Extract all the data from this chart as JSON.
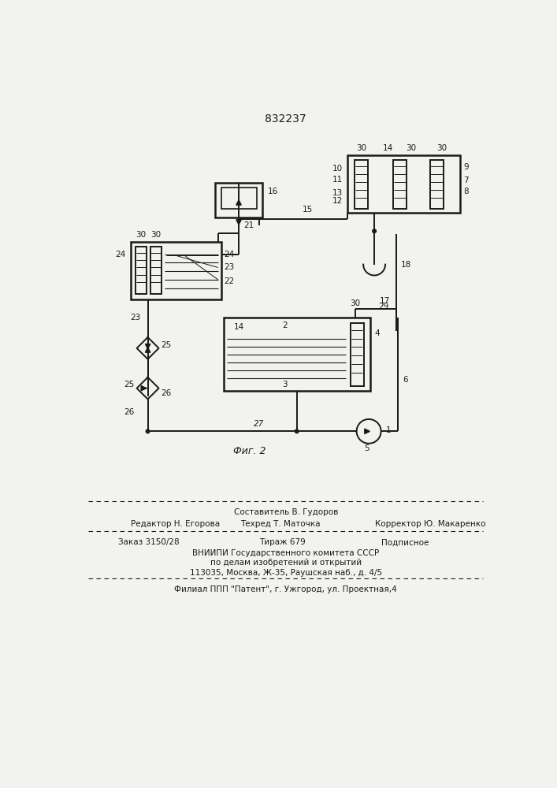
{
  "patent_number": "832237",
  "fig_label": "Фиг. 2",
  "background_color": "#f2f2ee",
  "line_color": "#1a1a1a",
  "footer_line1": "Составитель В. Гудоров",
  "footer_line2_left": "Редактор Н. Егорова",
  "footer_line2_mid": "Техред Т. Маточка",
  "footer_line2_right": "Корректор Ю. Макаренко",
  "footer_line3_left": "Заказ 3150/28",
  "footer_line3_mid": "Тираж 679",
  "footer_line3_right": "Подписное",
  "footer_line4": "ВНИИПИ Государственного комитета СССР",
  "footer_line5": "по делам изобретений и открытий",
  "footer_line6": "113035, Москва, Ж-35, Раушская наб., д. 4/5",
  "footer_line7": "Филиал ППП \"Патент\", г. Ужгород, ул. Проектная,4"
}
